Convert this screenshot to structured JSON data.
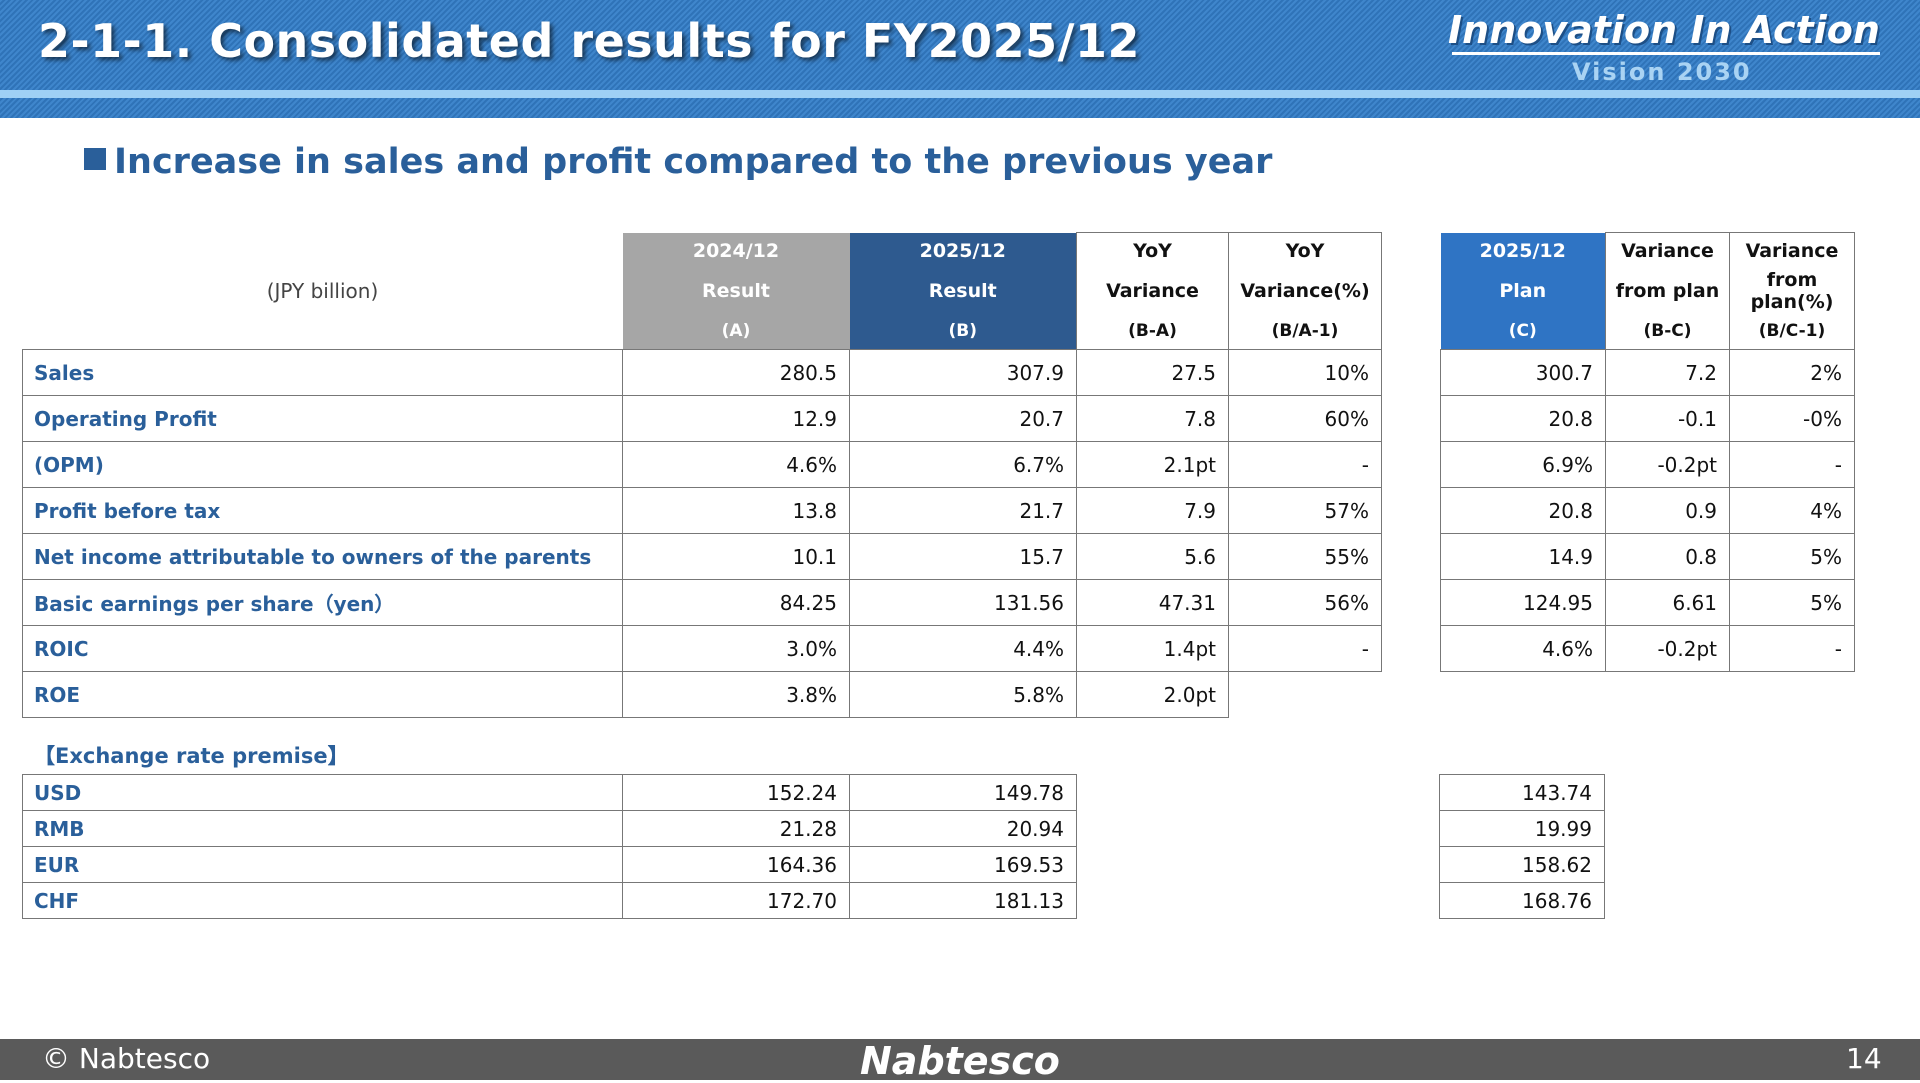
{
  "header": {
    "title": "2-1-1. Consolidated results for FY2025/12",
    "brand_main": "Innovation In Action",
    "brand_sub": "Vision 2030"
  },
  "subtitle": "Increase in sales and profit compared to the previous year",
  "table": {
    "unit": "(JPY billion)",
    "columns": [
      {
        "line1": "2024/12",
        "line2": "Result",
        "line3": "(A)"
      },
      {
        "line1": "2025/12",
        "line2": "Result",
        "line3": "(B)"
      },
      {
        "line1": "YoY",
        "line2": "Variance",
        "line3": "(B-A)"
      },
      {
        "line1": "YoY",
        "line2": "Variance(%)",
        "line3": "(B/A-1)"
      },
      {
        "line1": "2025/12",
        "line2": "Plan",
        "line3": "(C)"
      },
      {
        "line1": "Variance",
        "line2": "from plan",
        "line3": "(B-C)"
      },
      {
        "line1": "Variance",
        "line2": "from plan(%)",
        "line3": "(B/C-1)"
      }
    ],
    "rows": [
      {
        "label": "Sales",
        "a": "280.5",
        "b": "307.9",
        "ba": "27.5",
        "bap": "10%",
        "c": "300.7",
        "bc": "7.2",
        "bcp": "2%"
      },
      {
        "label": "Operating Profit",
        "a": "12.9",
        "b": "20.7",
        "ba": "7.8",
        "bap": "60%",
        "c": "20.8",
        "bc": "-0.1",
        "bcp": "-0%"
      },
      {
        "label": "(OPM)",
        "a": "4.6%",
        "b": "6.7%",
        "ba": "2.1pt",
        "bap": "-",
        "c": "6.9%",
        "bc": "-0.2pt",
        "bcp": "-"
      },
      {
        "label": "Profit before tax",
        "a": "13.8",
        "b": "21.7",
        "ba": "7.9",
        "bap": "57%",
        "c": "20.8",
        "bc": "0.9",
        "bcp": "4%"
      },
      {
        "label": "Net income attributable to owners of the parents",
        "a": "10.1",
        "b": "15.7",
        "ba": "5.6",
        "bap": "55%",
        "c": "14.9",
        "bc": "0.8",
        "bcp": "5%"
      },
      {
        "label": "Basic earnings per share（yen）",
        "a": "84.25",
        "b": "131.56",
        "ba": "47.31",
        "bap": "56%",
        "c": "124.95",
        "bc": "6.61",
        "bcp": "5%"
      },
      {
        "label": "ROIC",
        "a": "3.0%",
        "b": "4.4%",
        "ba": "1.4pt",
        "bap": "-",
        "c": "4.6%",
        "bc": "-0.2pt",
        "bcp": "-"
      },
      {
        "label": "ROE",
        "a": "3.8%",
        "b": "5.8%",
        "ba": "2.0pt"
      }
    ]
  },
  "exchange": {
    "title": "【Exchange rate premise】",
    "rows": [
      {
        "label": "USD",
        "a": "152.24",
        "b": "149.78",
        "c": "143.74"
      },
      {
        "label": "RMB",
        "a": "21.28",
        "b": "20.94",
        "c": "19.99"
      },
      {
        "label": "EUR",
        "a": "164.36",
        "b": "169.53",
        "c": "158.62"
      },
      {
        "label": "CHF",
        "a": "172.70",
        "b": "181.13",
        "c": "168.76"
      }
    ]
  },
  "footer": {
    "copyright": "© Nabtesco",
    "logo": "Nabtesco",
    "page_number": "14"
  }
}
